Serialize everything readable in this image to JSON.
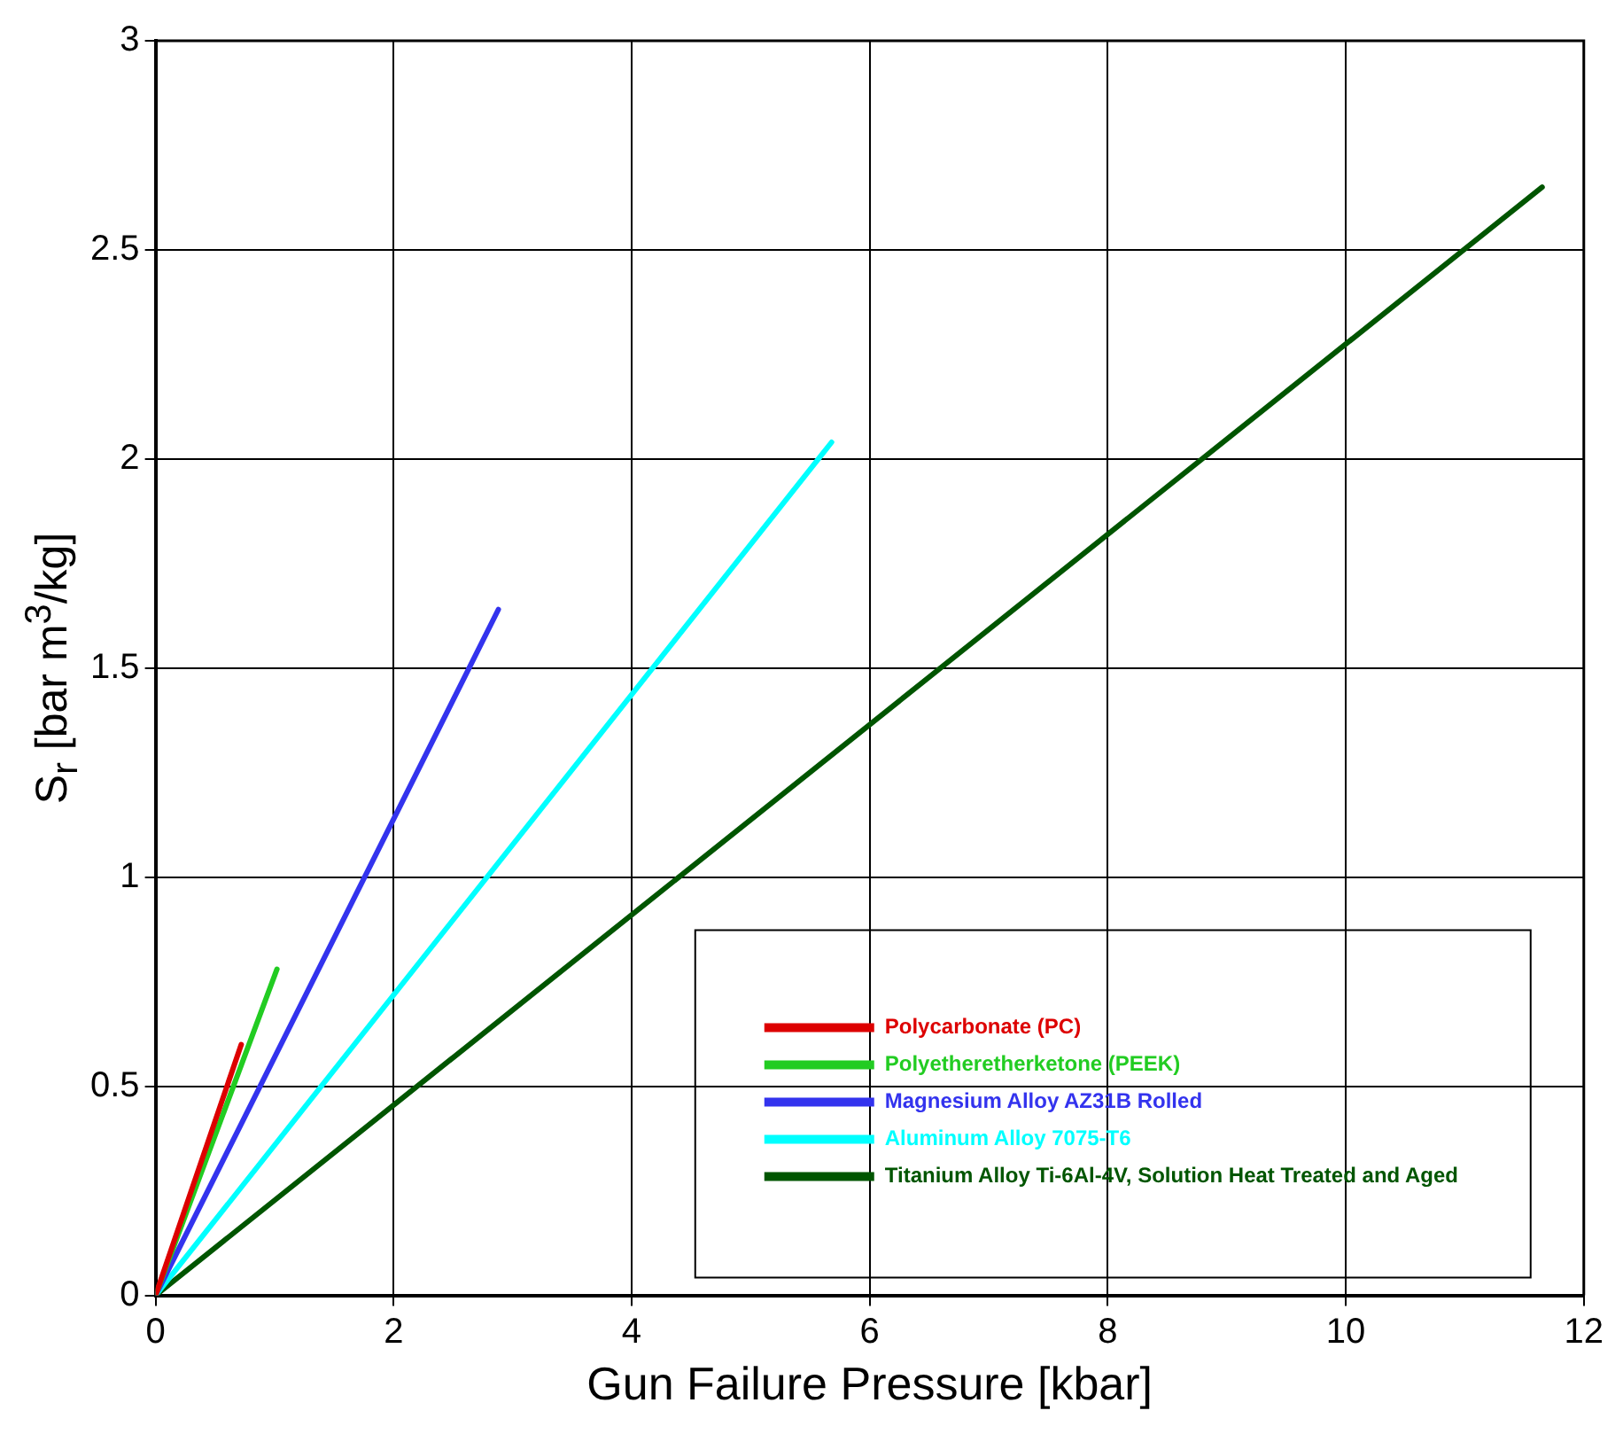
{
  "chart_data": {
    "type": "line",
    "xlabel": "Gun Failure Pressure [kbar]",
    "ylabel": "S$_{r}$  [bar m$^{3}$/kg]",
    "xlim": [
      0,
      12
    ],
    "xticks": [
      0,
      2,
      4,
      6,
      8,
      10,
      12
    ],
    "ylim": [
      0,
      3
    ],
    "yticks": [
      0,
      0.5,
      1,
      1.5,
      2,
      2.5,
      3
    ],
    "grid": true,
    "legend": "bottom right",
    "marker": "none",
    "line_style": "solid",
    "series": [
      {
        "name": "Polycarbonate (PC)",
        "color": "#dd0000",
        "x": [
          0,
          0.72
        ],
        "values": [
          0,
          0.6
        ]
      },
      {
        "name": "Polyetheretherketone (PEEK)",
        "color": "#22cc22",
        "x": [
          0,
          1.02
        ],
        "values": [
          0,
          0.78
        ]
      },
      {
        "name": "Magnesium Alloy AZ31B Rolled",
        "color": "#3333ee",
        "x": [
          0,
          2.88
        ],
        "values": [
          0,
          1.64
        ]
      },
      {
        "name": "Aluminum Alloy 7075-T6",
        "color": "#00ffff",
        "x": [
          0,
          5.68
        ],
        "values": [
          0,
          2.04
        ]
      },
      {
        "name": "Titanium Alloy Ti-6Al-4V, Solution Heat Treated and Aged",
        "color": "#005500",
        "x": [
          0,
          11.65
        ],
        "values": [
          0,
          2.65
        ]
      }
    ]
  }
}
